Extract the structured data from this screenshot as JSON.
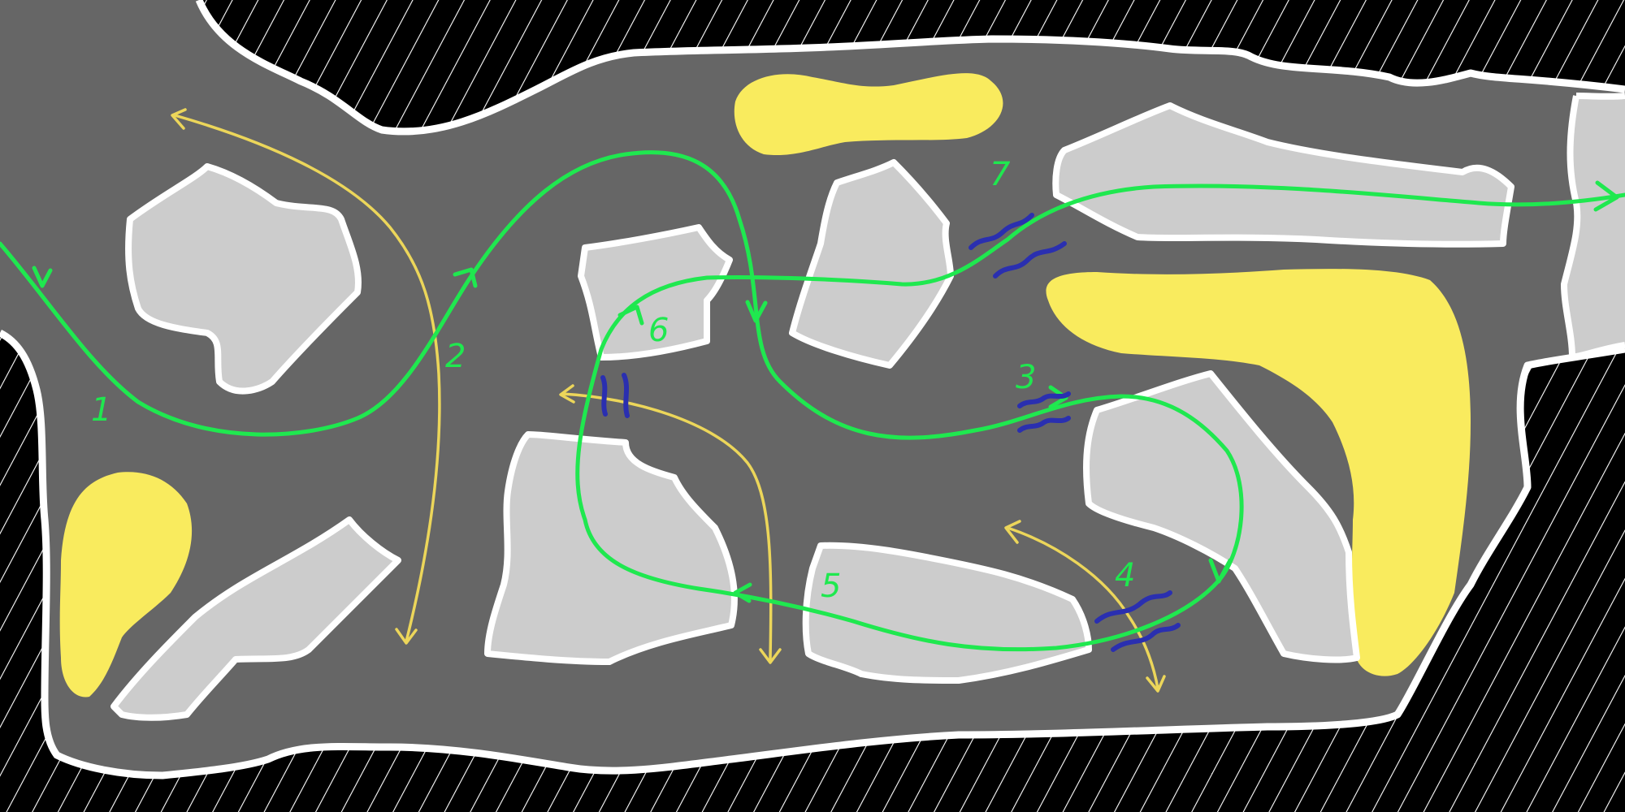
{
  "map": {
    "colors": {
      "outside": "#000000",
      "hatch": "#ffffff",
      "floor": "#666666",
      "wall": "#ffffff",
      "rock": "#cccccc",
      "hazard": "#f9eb5e",
      "route": "#1fe84f",
      "alt_route": "#ecd65a",
      "water": "#2a2fb0"
    },
    "route_labels": [
      "1",
      "2",
      "3",
      "4",
      "5",
      "6",
      "7"
    ]
  }
}
